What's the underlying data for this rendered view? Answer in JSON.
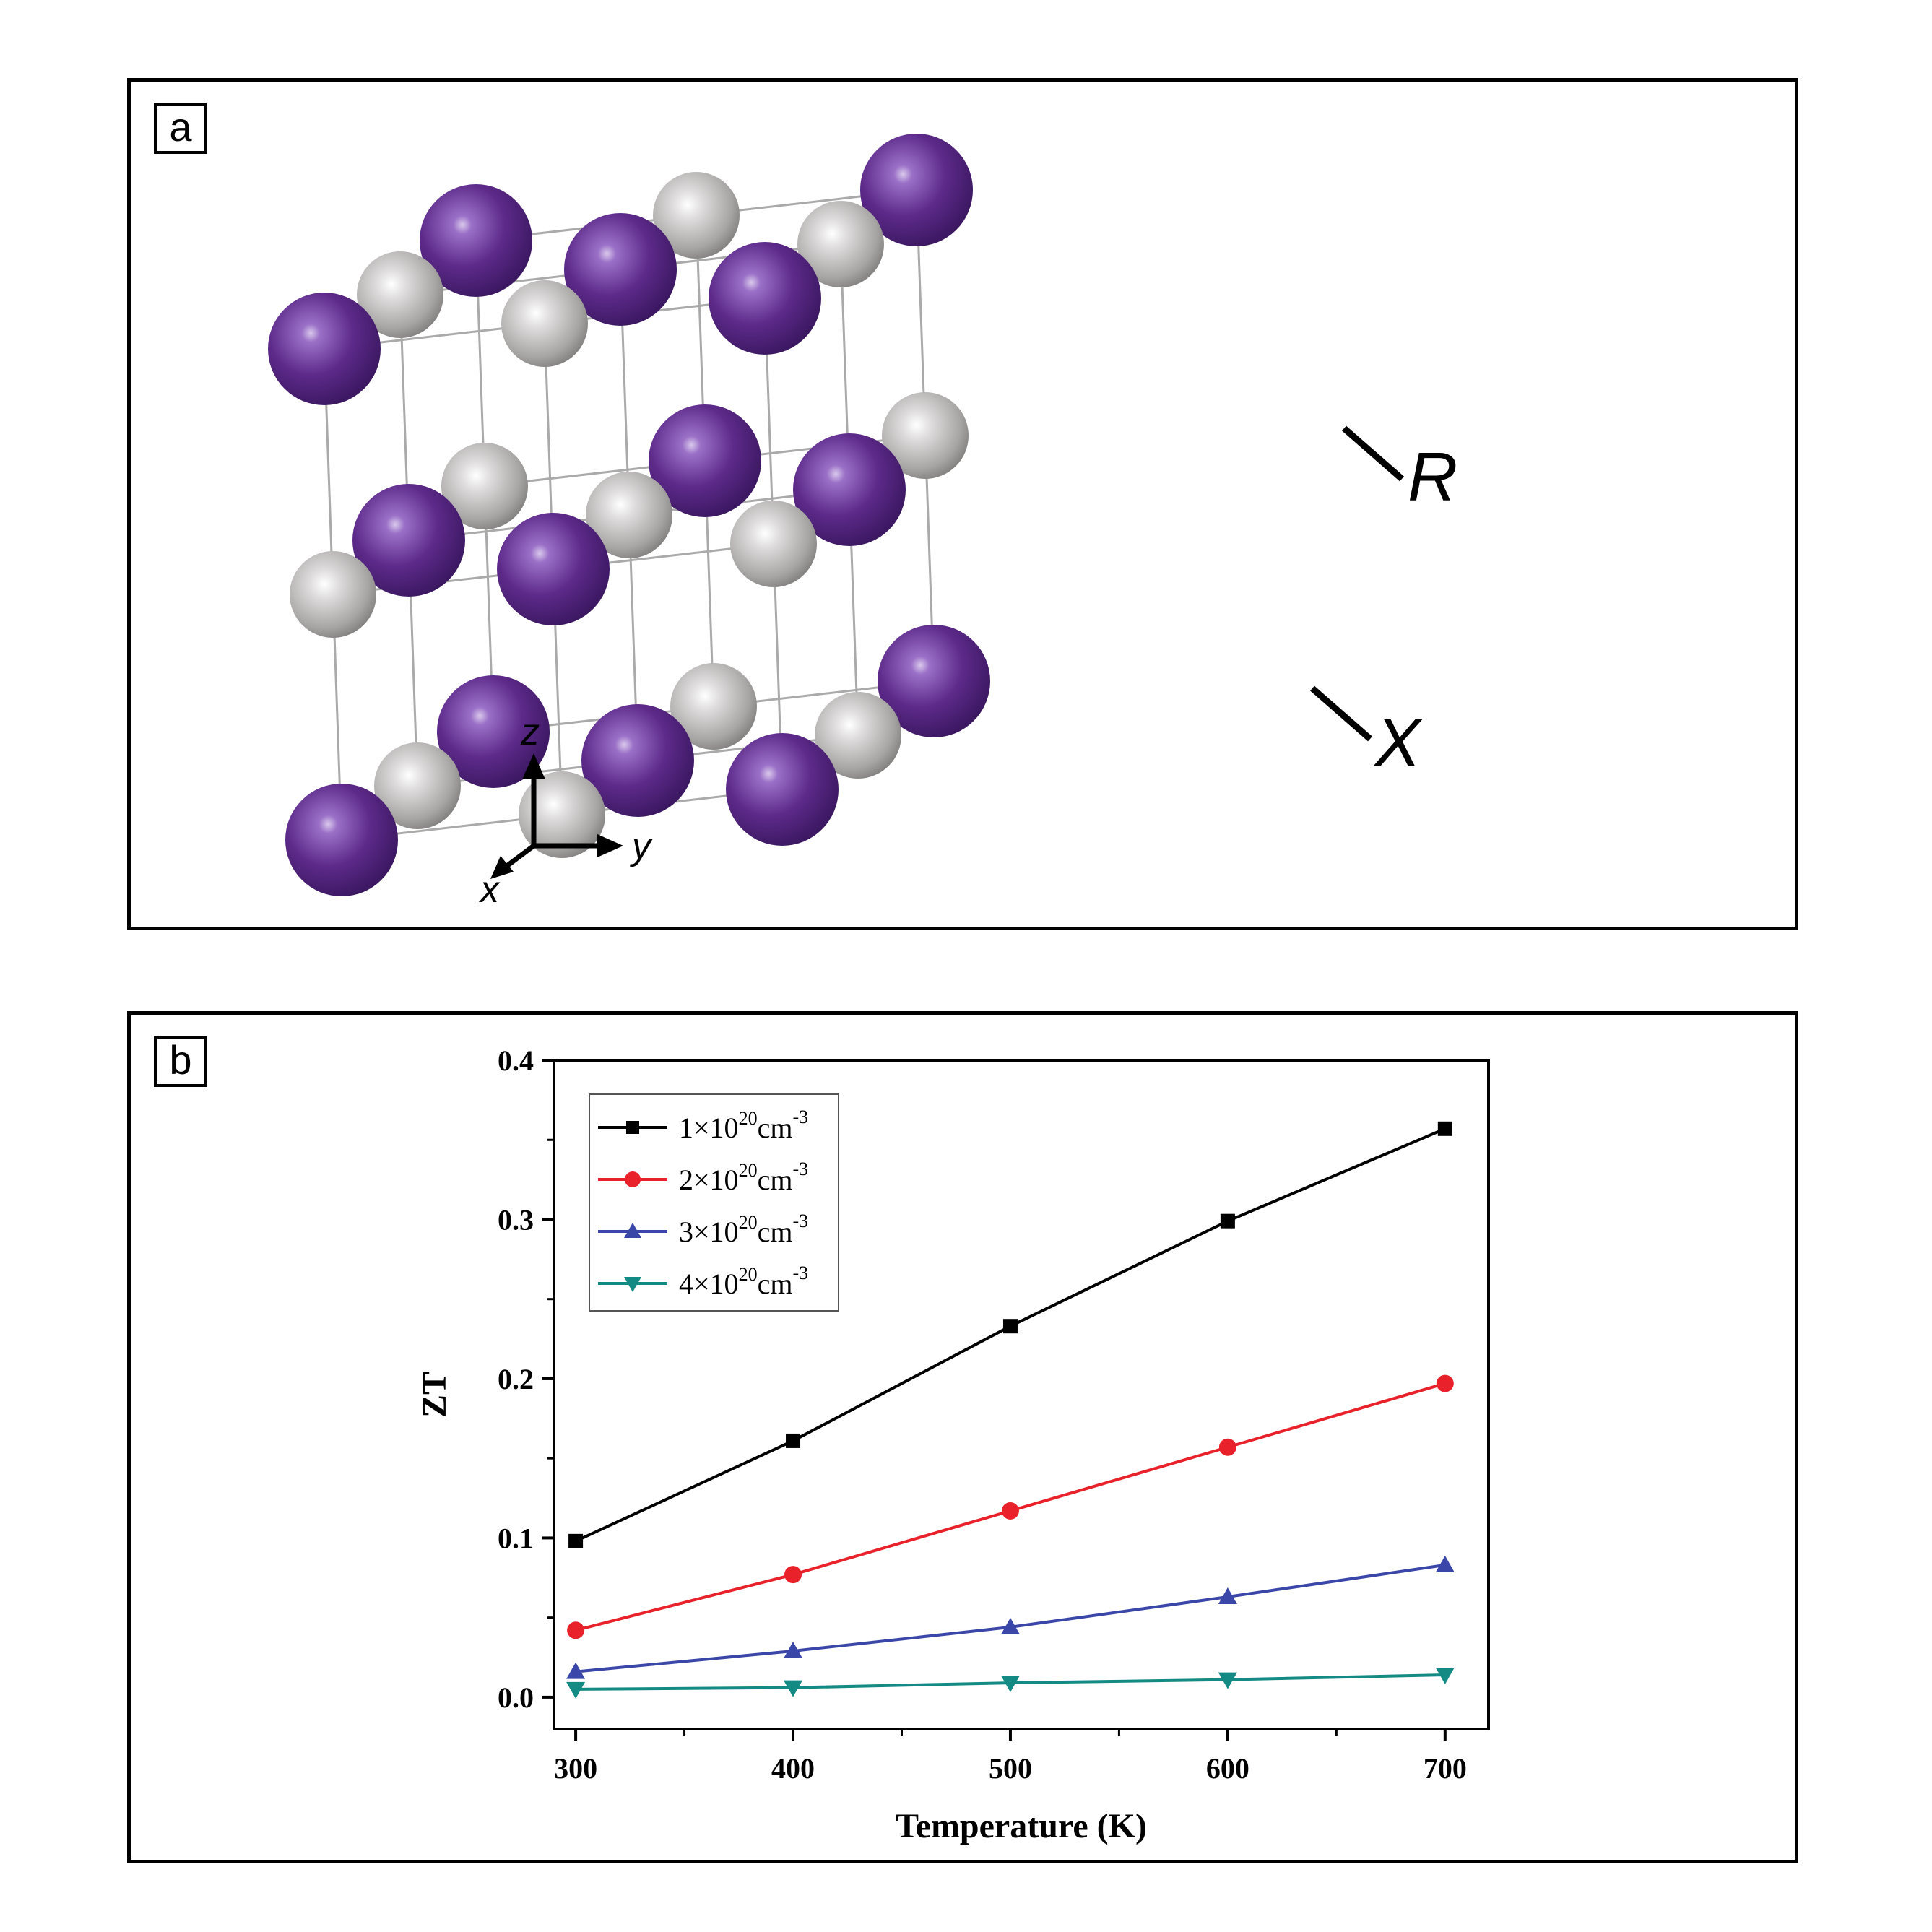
{
  "panel_a": {
    "label": "a",
    "site_labels": {
      "r": "R",
      "x": "X"
    },
    "axes": {
      "z": "z",
      "y": "y",
      "x": "x"
    },
    "colors": {
      "r_atom": "#5b2a86",
      "x_atom": "#b9b6b6",
      "bonds": "#aaaaaa"
    }
  },
  "panel_b": {
    "label": "b",
    "chart_data": {
      "type": "line",
      "title": "",
      "xlabel": "Temperature (K)",
      "ylabel": "ZT",
      "x": [
        300,
        400,
        500,
        600,
        700
      ],
      "xlim": [
        290,
        720
      ],
      "ylim": [
        -0.02,
        0.4
      ],
      "xticks": [
        300,
        400,
        500,
        600,
        700
      ],
      "yticks": [
        0.0,
        0.1,
        0.2,
        0.3,
        0.4
      ],
      "ytick_labels": [
        "0.0",
        "0.1",
        "0.2",
        "0.3",
        "0.4"
      ],
      "legend_position": "top-left",
      "series": [
        {
          "name": "1×10²⁰cm⁻³",
          "coef": "1×10",
          "exp": "20",
          "unit": "cm",
          "unit_exp": "-3",
          "marker": "square",
          "color": "#000000",
          "values": [
            0.098,
            0.161,
            0.233,
            0.299,
            0.357
          ]
        },
        {
          "name": "2×10²⁰cm⁻³",
          "coef": "2×10",
          "exp": "20",
          "unit": "cm",
          "unit_exp": "-3",
          "marker": "circle",
          "color": "#e8212a",
          "values": [
            0.042,
            0.077,
            0.117,
            0.157,
            0.197
          ]
        },
        {
          "name": "3×10²⁰cm⁻³",
          "coef": "3×10",
          "exp": "20",
          "unit": "cm",
          "unit_exp": "-3",
          "marker": "triangle-up",
          "color": "#3a47a8",
          "values": [
            0.016,
            0.029,
            0.044,
            0.063,
            0.083
          ]
        },
        {
          "name": "4×10²⁰cm⁻³",
          "coef": "4×10",
          "exp": "20",
          "unit": "cm",
          "unit_exp": "-3",
          "marker": "triangle-down",
          "color": "#138a83",
          "values": [
            0.005,
            0.006,
            0.009,
            0.011,
            0.014
          ]
        }
      ]
    }
  }
}
